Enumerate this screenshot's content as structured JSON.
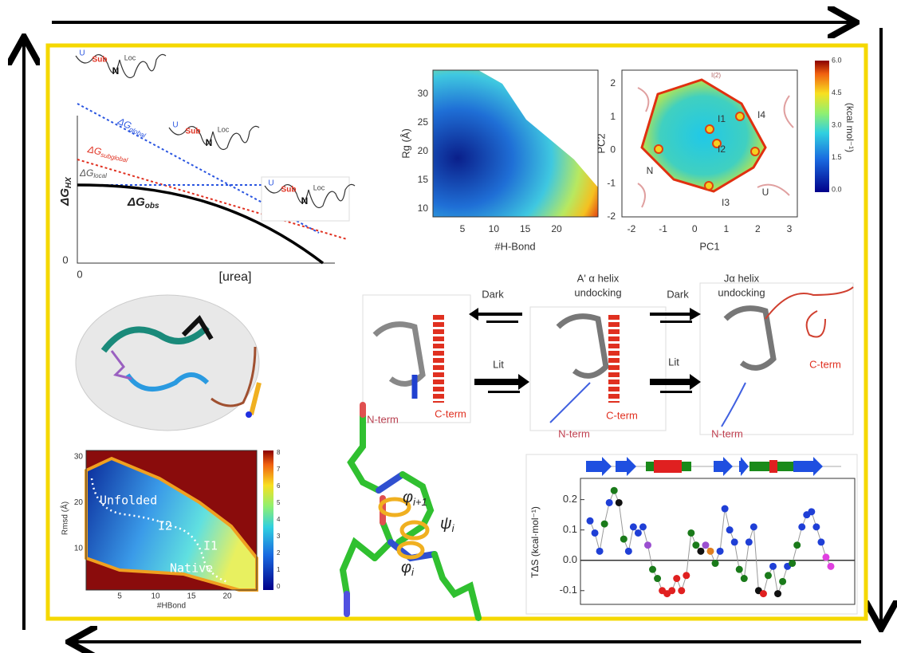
{
  "panel_dg": {
    "y_label": {
      "main": "ΔG",
      "sub": "HX"
    },
    "x_label": "[urea]",
    "x_zero": "0",
    "y_zero": "0",
    "curves": [
      {
        "main": "ΔG",
        "sub": "global"
      },
      {
        "main": "ΔG",
        "sub": "subglobal"
      },
      {
        "main": "ΔG",
        "sub": "local"
      },
      {
        "main": "ΔG",
        "sub": "obs"
      }
    ],
    "landscapes": [
      {
        "states": [
          "U",
          "Sub",
          "N",
          "Loc"
        ]
      },
      {
        "states": [
          "U",
          "Sub",
          "N",
          "Loc"
        ]
      },
      {
        "states": [
          "U",
          "Sub",
          "N",
          "Loc"
        ]
      }
    ]
  },
  "panel_rg": {
    "y_label": "Rg (Å)",
    "x_label": "#H-Bond",
    "yticks": [
      "30",
      "25",
      "20",
      "15",
      "10"
    ],
    "xticks": [
      "5",
      "10",
      "15",
      "20"
    ]
  },
  "panel_pca": {
    "y_label": "PC2",
    "x_label": "PC1",
    "yticks": [
      "2",
      "1",
      "0",
      "-1",
      "-2"
    ],
    "xticks": [
      "-2",
      "-1",
      "0",
      "1",
      "2",
      "3"
    ],
    "states": [
      "I1",
      "I2",
      "I3",
      "I4",
      "N",
      "U",
      "I(2)"
    ],
    "colorbar_ticks": [
      "6.0",
      "4.5",
      "3.0",
      "1.5",
      "0.0"
    ],
    "colorbar_label": "(kcal mol⁻¹)"
  },
  "panel_mechanism": {
    "steps": [
      {
        "title": [
          "A' α helix",
          "undocking"
        ],
        "arrows": [
          "Dark",
          "Lit"
        ]
      },
      {
        "title": [
          "Jα helix",
          "undocking"
        ],
        "arrows": [
          "Dark",
          "Lit"
        ]
      }
    ],
    "structures": [
      {
        "n_term": "N-term",
        "c_term": "C-term"
      },
      {
        "n_term": "N-term",
        "c_term": "C-term"
      },
      {
        "n_term": "N-term",
        "c_term": "C-term"
      }
    ]
  },
  "panel_hbond": {
    "y_label": "Rmsd (Å)",
    "x_label": "#HBond",
    "yticks": [
      "30",
      "20",
      "10"
    ],
    "xticks": [
      "5",
      "10",
      "15",
      "20"
    ],
    "regions": [
      "Unfolded",
      "I2",
      "I1",
      "Native"
    ],
    "colorbar_ticks": [
      "8",
      "7",
      "6",
      "5",
      "4",
      "3",
      "2",
      "1",
      "0"
    ]
  },
  "panel_dihedral": {
    "angles": [
      {
        "main": "φ",
        "sub": "i+1"
      },
      {
        "main": "ψ",
        "sub": "i"
      },
      {
        "main": "φ",
        "sub": "i"
      }
    ]
  },
  "chart_data": {
    "type": "scatter",
    "y_label": "TΔS (kcal·mol⁻¹)",
    "ylim": [
      -0.14,
      0.27
    ],
    "yticks": [
      -0.1,
      {
        "value": 0,
        "label": "0.0"
      },
      0.1,
      0.2
    ],
    "zero_line": true,
    "categories": [
      null,
      null,
      null,
      null,
      null,
      null,
      null,
      null,
      null,
      null,
      null,
      null,
      null,
      null,
      null,
      null,
      null,
      null,
      null,
      null,
      null,
      null,
      null,
      null,
      null,
      null,
      null,
      null,
      null,
      null,
      null,
      null,
      null,
      null,
      null,
      null,
      null,
      null,
      null,
      null,
      null,
      null,
      null,
      null,
      null,
      null,
      null,
      null,
      null,
      null,
      null
    ],
    "values": [
      0.13,
      0.09,
      0.03,
      0.12,
      0.19,
      0.23,
      0.19,
      0.07,
      0.03,
      0.11,
      0.09,
      0.11,
      0.05,
      -0.03,
      -0.06,
      -0.1,
      -0.11,
      -0.1,
      -0.06,
      -0.1,
      -0.05,
      0.09,
      0.05,
      0.03,
      0.05,
      0.03,
      -0.01,
      0.03,
      0.17,
      0.1,
      0.06,
      -0.03,
      -0.06,
      0.06,
      0.11,
      -0.1,
      -0.11,
      -0.05,
      -0.02,
      -0.11,
      -0.07,
      -0.02,
      -0.01,
      0.05,
      0.11,
      0.15,
      0.16,
      0.11,
      0.06,
      0.01,
      -0.02
    ],
    "point_colors": [
      "#1f3fd6",
      "#1f3fd6",
      "#1f3fd6",
      "#1a7a1a",
      "#1f3fd6",
      "#1a7a1a",
      "#111111",
      "#1a7a1a",
      "#1f3fd6",
      "#1f3fd6",
      "#1f3fd6",
      "#1f3fd6",
      "#9b4fd0",
      "#1a7a1a",
      "#1a7a1a",
      "#e02020",
      "#e02020",
      "#e02020",
      "#e02020",
      "#e02020",
      "#e02020",
      "#1a7a1a",
      "#1a7a1a",
      "#111111",
      "#9b4fd0",
      "#e08020",
      "#1a7a1a",
      "#1f3fd6",
      "#1f3fd6",
      "#1f3fd6",
      "#1f3fd6",
      "#1a7a1a",
      "#1a7a1a",
      "#1f3fd6",
      "#1f3fd6",
      "#111111",
      "#e02020",
      "#1a7a1a",
      "#1f3fd6",
      "#111111",
      "#1a7a1a",
      "#1f3fd6",
      "#1a7a1a",
      "#1a7a1a",
      "#1f3fd6",
      "#1f3fd6",
      "#1f3fd6",
      "#1f3fd6",
      "#1f3fd6",
      "#e040e0",
      "#e040e0"
    ]
  }
}
